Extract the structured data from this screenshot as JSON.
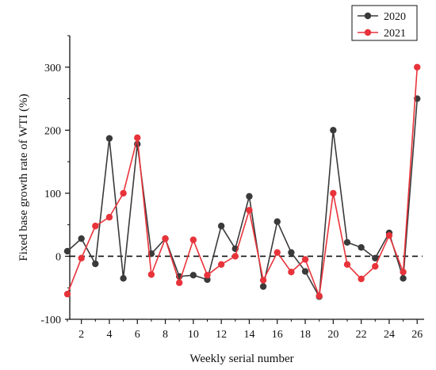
{
  "chart_data": {
    "type": "line",
    "title": "",
    "xlabel": "Weekly serial number",
    "ylabel": "Fixed base growth rate of WTI (%)",
    "xlim": [
      1,
      26
    ],
    "ylim": [
      -100,
      350
    ],
    "x_ticks": [
      2,
      4,
      6,
      8,
      10,
      12,
      14,
      16,
      18,
      20,
      22,
      24,
      26
    ],
    "y_ticks": [
      -100,
      0,
      100,
      200,
      300
    ],
    "reference_line": 0,
    "grid": false,
    "legend_position": "top-right",
    "x": [
      1,
      2,
      3,
      4,
      5,
      6,
      7,
      8,
      9,
      10,
      11,
      12,
      13,
      14,
      15,
      16,
      17,
      18,
      19,
      20,
      21,
      22,
      23,
      24,
      25,
      26
    ],
    "series": [
      {
        "name": "2020",
        "color": "#3a3a3a",
        "values": [
          8,
          28,
          -12,
          187,
          -35,
          178,
          4,
          28,
          -32,
          -30,
          -37,
          48,
          12,
          95,
          -48,
          55,
          6,
          -24,
          -64,
          200,
          22,
          14,
          -3,
          37,
          -35,
          250
        ]
      },
      {
        "name": "2021",
        "color": "#e8333a",
        "values": [
          -60,
          -3,
          48,
          62,
          100,
          188,
          -29,
          28,
          -42,
          26,
          -30,
          -13,
          0,
          73,
          -38,
          6,
          -25,
          -5,
          -63,
          100,
          -13,
          -36,
          -16,
          33,
          -25,
          300
        ]
      }
    ]
  }
}
